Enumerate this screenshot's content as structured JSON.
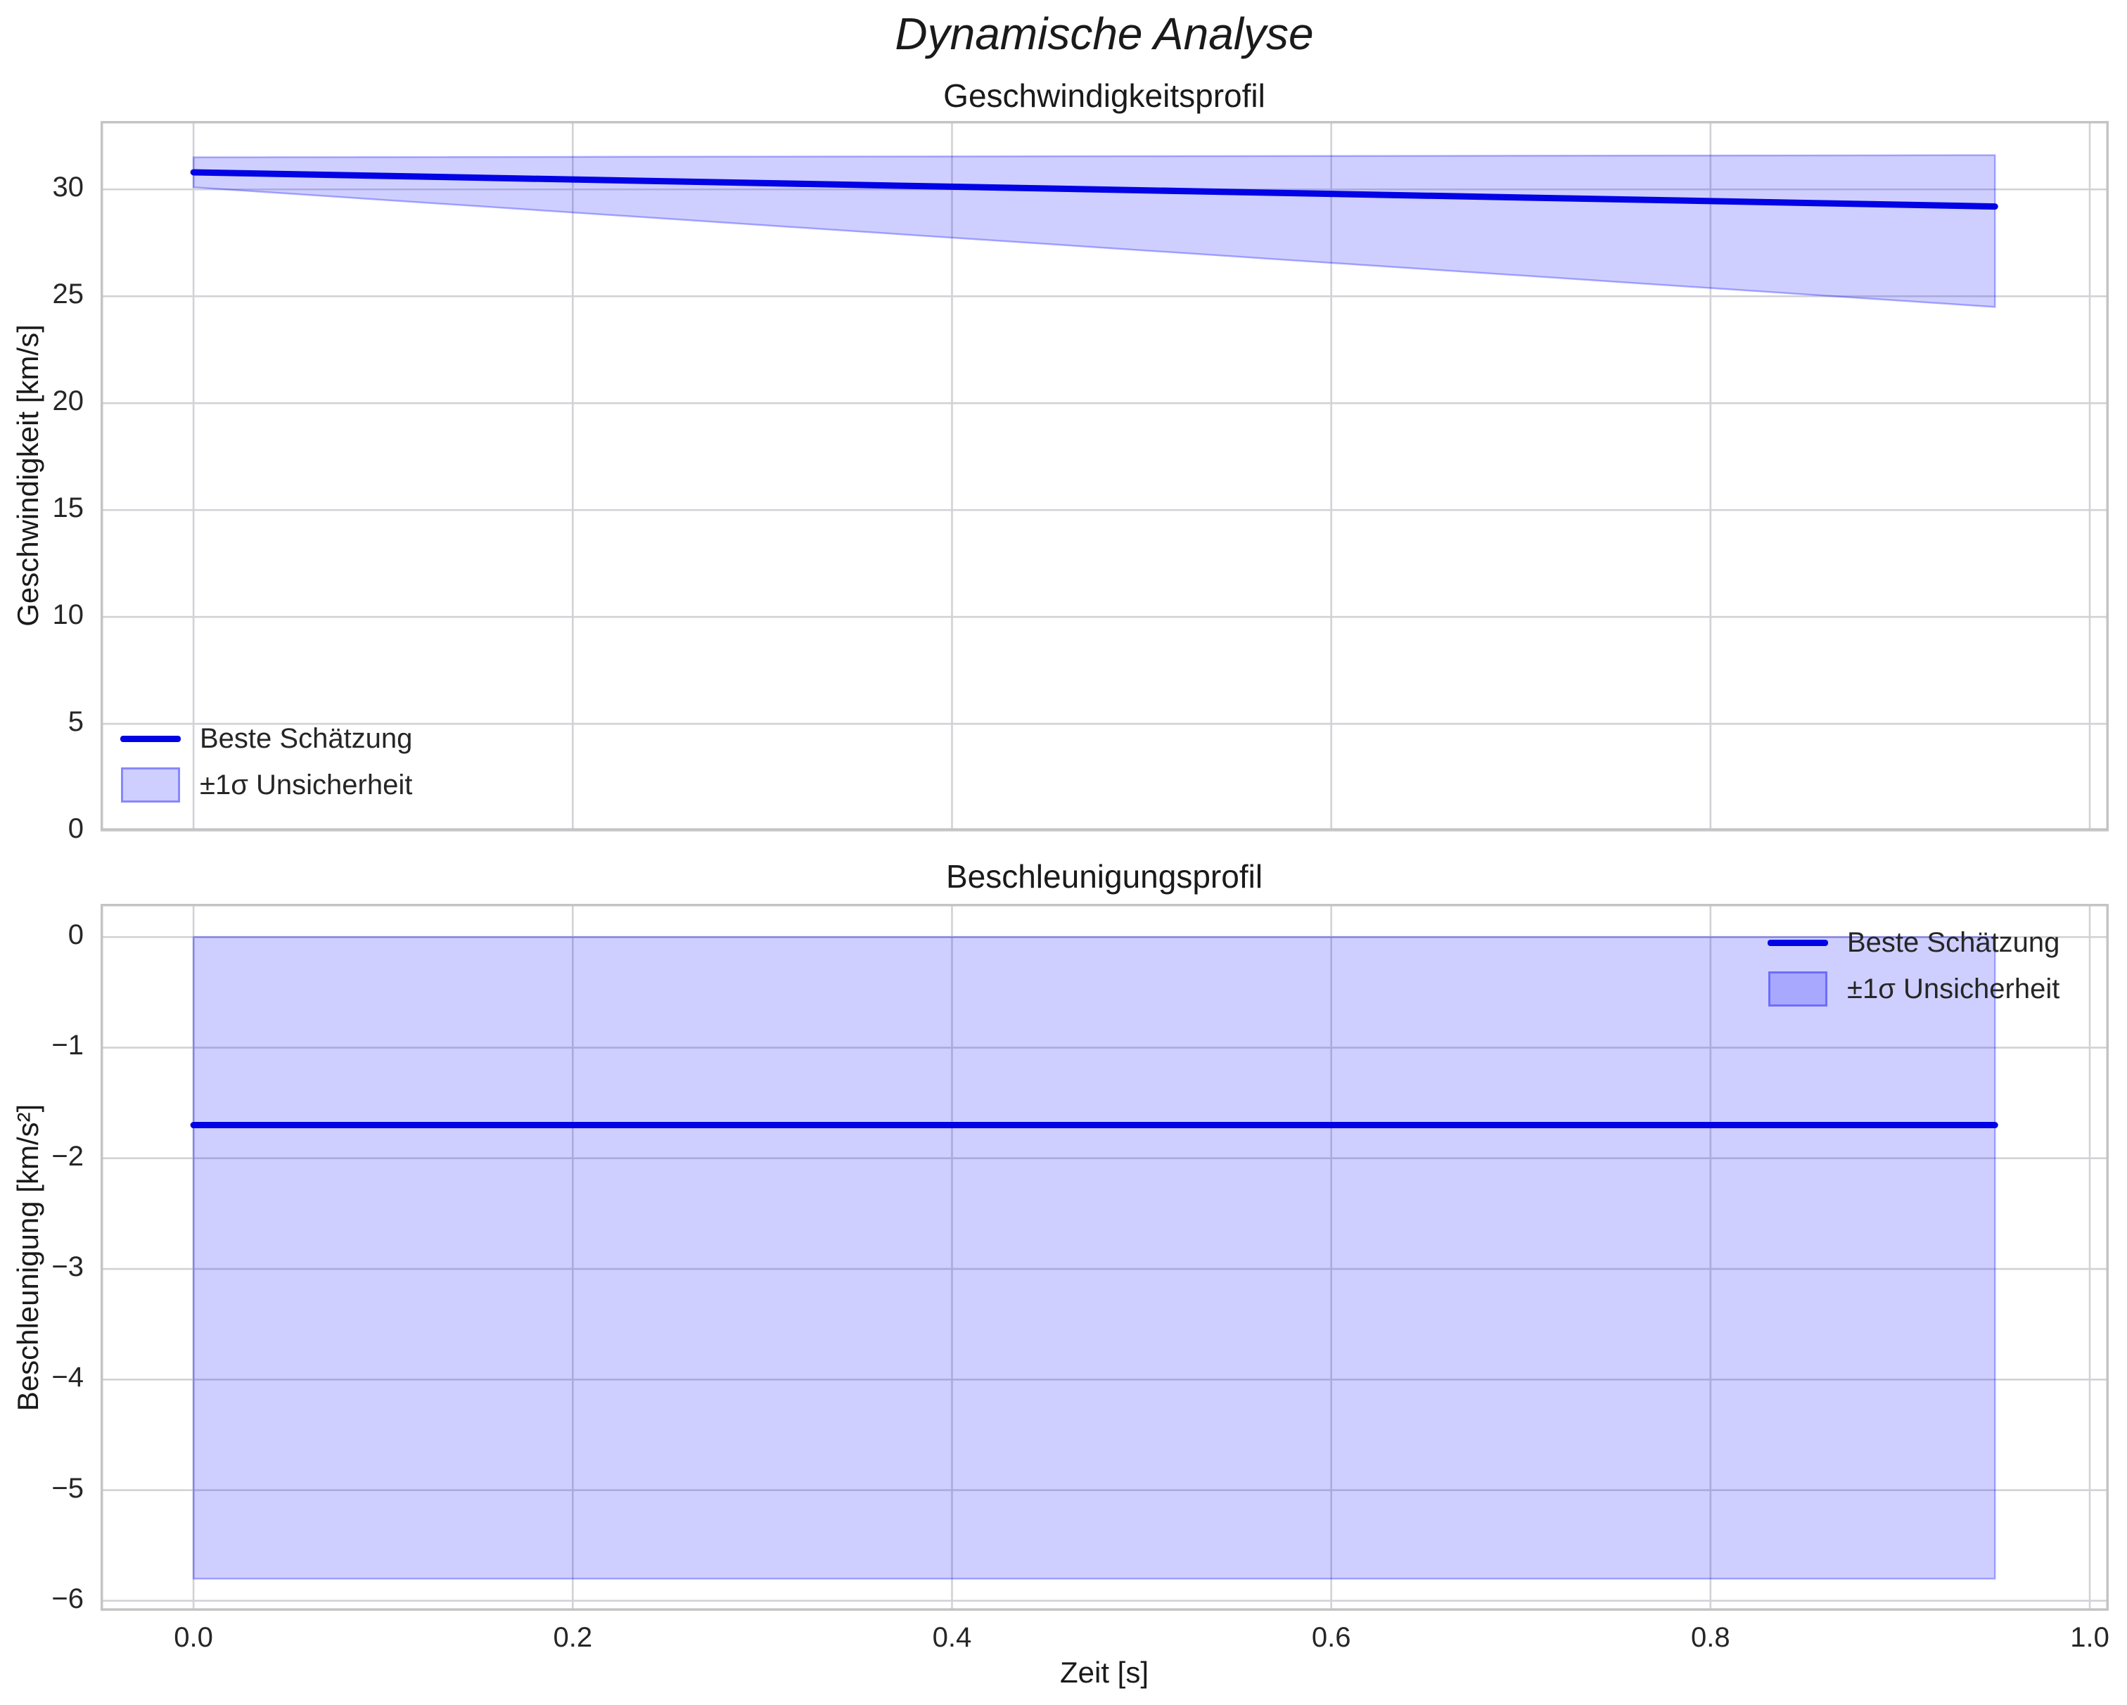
{
  "page": {
    "suptitle": "Dynamische Analyse"
  },
  "style": {
    "line_color": "#0202e6",
    "band_fill": "rgba(0,0,255,0.19)",
    "band_edge": "rgba(0,0,255,0.30)",
    "grid_color": "#d2d2d6",
    "spine_color": "#c4c4c6",
    "text_color": "#262626"
  },
  "chart_data": [
    {
      "type": "line",
      "title": "Geschwindigkeitsprofil",
      "ylabel": "Geschwindigkeit [km/s]",
      "x": [
        0.0,
        0.95
      ],
      "series": [
        {
          "name": "Beste Schätzung",
          "values": [
            30.8,
            29.2
          ]
        }
      ],
      "band": {
        "name": "±1σ Unsicherheit",
        "upper": [
          31.5,
          31.6
        ],
        "lower": [
          30.1,
          24.5
        ]
      },
      "xlim": [
        -0.049,
        1.01
      ],
      "ylim": [
        0,
        33.2
      ],
      "xticks": [
        0.0,
        0.2,
        0.4,
        0.6,
        0.8,
        1.0
      ],
      "xtick_labels": [
        "0.0",
        "0.2",
        "0.4",
        "0.6",
        "0.8",
        "1.0"
      ],
      "yticks": [
        0,
        5,
        10,
        15,
        20,
        25,
        30
      ],
      "ytick_labels": [
        "0",
        "5",
        "10",
        "15",
        "20",
        "25",
        "30"
      ],
      "grid": true,
      "legend_position": "lower-left"
    },
    {
      "type": "line",
      "title": "Beschleunigungsprofil",
      "ylabel": "Beschleunigung [km/s²]",
      "xlabel": "Zeit [s]",
      "x": [
        0.0,
        0.95
      ],
      "series": [
        {
          "name": "Beste Schätzung",
          "values": [
            -1.7,
            -1.7
          ]
        }
      ],
      "band": {
        "name": "±1σ Unsicherheit",
        "upper": [
          0,
          0
        ],
        "lower": [
          -5.8,
          -5.8
        ]
      },
      "xlim": [
        -0.049,
        1.01
      ],
      "ylim": [
        -6.09,
        0.3
      ],
      "xticks": [
        0.0,
        0.2,
        0.4,
        0.6,
        0.8,
        1.0
      ],
      "xtick_labels": [
        "0.0",
        "0.2",
        "0.4",
        "0.6",
        "0.8",
        "1.0"
      ],
      "yticks": [
        0,
        -1,
        -2,
        -3,
        -4,
        -5,
        -6
      ],
      "ytick_labels": [
        "0",
        "−1",
        "−2",
        "−3",
        "−4",
        "−5",
        "−6"
      ],
      "grid": true,
      "legend_position": "upper-right"
    }
  ]
}
